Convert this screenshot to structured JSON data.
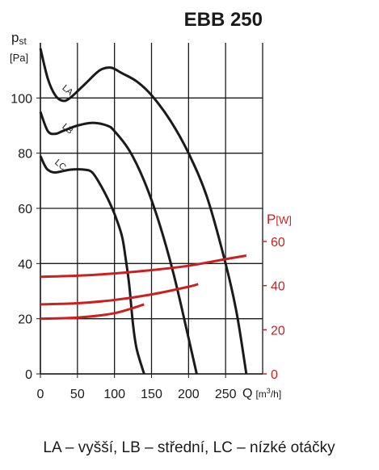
{
  "chart_data": {
    "type": "line",
    "title": "EBB 250",
    "y_label": "p",
    "y_label_sub": "st",
    "y_unit": "[Pa]",
    "x_label": "Q",
    "x_unit": "[m",
    "x_unit_sup": "3",
    "x_unit_end": "/h]",
    "y2_label": "P",
    "y2_unit": "[W]",
    "xlim": [
      0,
      300
    ],
    "xticks": [
      0,
      50,
      100,
      150,
      200,
      250
    ],
    "ylim": [
      0,
      120
    ],
    "yticks": [
      0,
      20,
      40,
      60,
      80,
      100
    ],
    "y2lim": [
      0,
      150
    ],
    "y2ticks": [
      0,
      20,
      40,
      60
    ],
    "grid": true,
    "series": [
      {
        "name": "LA",
        "color": "#1a1a1a",
        "x": [
          0,
          10,
          20,
          30,
          40,
          60,
          80,
          95,
          110,
          130,
          150,
          175,
          200,
          225,
          250,
          265,
          278
        ],
        "values": [
          118,
          107,
          101,
          99,
          100,
          105,
          110,
          111,
          109,
          106,
          101,
          92,
          80,
          64,
          40,
          22,
          0
        ]
      },
      {
        "name": "LB",
        "color": "#1a1a1a",
        "x": [
          0,
          10,
          20,
          30,
          50,
          70,
          90,
          100,
          120,
          140,
          160,
          180,
          200,
          211
        ],
        "values": [
          95,
          88,
          87,
          88,
          90,
          91,
          90,
          88,
          81,
          70,
          55,
          36,
          13,
          0
        ]
      },
      {
        "name": "LC",
        "color": "#1a1a1a",
        "x": [
          0,
          5,
          10,
          20,
          40,
          60,
          70,
          80,
          90,
          100,
          110,
          115,
          120,
          125,
          130,
          140
        ],
        "values": [
          79,
          76,
          74,
          73,
          74,
          74,
          73,
          69,
          64,
          58,
          50,
          42,
          32,
          18,
          9,
          0
        ]
      },
      {
        "color": "#cc1f1f",
        "axis": "y2",
        "x": [
          0,
          50,
          100,
          150,
          200,
          250,
          278
        ],
        "values": [
          44,
          44.5,
          45.5,
          47,
          49,
          52,
          53.6
        ]
      },
      {
        "color": "#cc1f1f",
        "axis": "y2",
        "x": [
          0,
          50,
          100,
          150,
          200,
          213
        ],
        "values": [
          31.5,
          32,
          33.5,
          36,
          39.5,
          40.7
        ]
      },
      {
        "color": "#cc1f1f",
        "axis": "y2",
        "x": [
          0,
          50,
          100,
          140
        ],
        "values": [
          25,
          25.5,
          27.5,
          31.5
        ]
      }
    ],
    "caption": "LA – vyšší, LB – střední, LC – nízké otáčky"
  }
}
